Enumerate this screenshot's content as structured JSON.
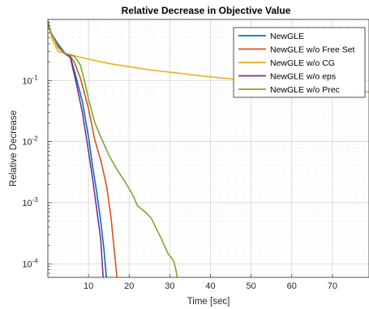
{
  "chart_data": {
    "type": "line",
    "title": "Relative Decrease in Objective Value",
    "xlabel": "Time [sec]",
    "ylabel": "Relative Decrease",
    "xlim": [
      0,
      79
    ],
    "ylim": [
      6e-05,
      1
    ],
    "y_scale": "log",
    "grid": true,
    "minor_grid": true,
    "legend_position": "top-right",
    "x_ticks": [
      10,
      20,
      30,
      40,
      50,
      60,
      70
    ],
    "x_tick_labels": [
      "10",
      "20",
      "30",
      "40",
      "50",
      "60",
      "70"
    ],
    "y_ticks": [
      {
        "value": 0.1,
        "base": "10",
        "exponent": "-1"
      },
      {
        "value": 0.01,
        "base": "10",
        "exponent": "-2"
      },
      {
        "value": 0.001,
        "base": "10",
        "exponent": "-3"
      },
      {
        "value": 0.0001,
        "base": "10",
        "exponent": "-4"
      }
    ],
    "series": [
      {
        "name": "NewGLE",
        "color": "#0072BD",
        "points": [
          [
            0,
            0.9
          ],
          [
            0.8,
            0.6
          ],
          [
            2.5,
            0.4
          ],
          [
            4,
            0.29
          ],
          [
            5.5,
            0.25
          ],
          [
            7,
            0.11
          ],
          [
            8.5,
            0.045
          ],
          [
            10,
            0.012
          ],
          [
            11,
            0.004
          ],
          [
            12,
            0.0015
          ],
          [
            13,
            0.0005
          ],
          [
            13.8,
            0.00017
          ],
          [
            14.4,
            6e-05
          ]
        ]
      },
      {
        "name": "NewGLE w/o Free Set",
        "color": "#D95319",
        "points": [
          [
            0,
            0.9
          ],
          [
            0.8,
            0.6
          ],
          [
            2.5,
            0.38
          ],
          [
            4,
            0.28
          ],
          [
            5.5,
            0.25
          ],
          [
            6.5,
            0.2
          ],
          [
            8,
            0.11
          ],
          [
            10,
            0.035
          ],
          [
            11.5,
            0.011
          ],
          [
            13,
            0.005
          ],
          [
            14.5,
            0.0018
          ],
          [
            15.5,
            0.0006
          ],
          [
            16.3,
            0.00018
          ],
          [
            17,
            6e-05
          ]
        ]
      },
      {
        "name": "NewGLE w/o CG",
        "color": "#EDB120",
        "points": [
          [
            0,
            0.85
          ],
          [
            1.2,
            0.45
          ],
          [
            2.5,
            0.3
          ],
          [
            5,
            0.27
          ],
          [
            8,
            0.24
          ],
          [
            15,
            0.19
          ],
          [
            25,
            0.15
          ],
          [
            40,
            0.115
          ],
          [
            60,
            0.085
          ],
          [
            79,
            0.065
          ]
        ]
      },
      {
        "name": "NewGLE w/o eps",
        "color": "#7E2F8E",
        "points": [
          [
            0,
            0.9
          ],
          [
            0.8,
            0.6
          ],
          [
            2.5,
            0.35
          ],
          [
            4,
            0.28
          ],
          [
            5.5,
            0.24
          ],
          [
            7,
            0.09
          ],
          [
            8.5,
            0.03
          ],
          [
            10,
            0.007
          ],
          [
            11,
            0.0025
          ],
          [
            12,
            0.0008
          ],
          [
            13,
            0.00025
          ],
          [
            13.6,
            6e-05
          ]
        ]
      },
      {
        "name": "NewGLE w/o Prec",
        "color": "#77AC30",
        "points": [
          [
            0,
            0.95
          ],
          [
            0.8,
            0.6
          ],
          [
            2.5,
            0.35
          ],
          [
            4,
            0.28
          ],
          [
            6.5,
            0.25
          ],
          [
            8,
            0.18
          ],
          [
            9,
            0.1
          ],
          [
            10,
            0.05
          ],
          [
            11.5,
            0.021
          ],
          [
            13,
            0.012
          ],
          [
            15,
            0.006
          ],
          [
            17,
            0.0035
          ],
          [
            19,
            0.0022
          ],
          [
            21,
            0.0013
          ],
          [
            22,
            0.0009
          ],
          [
            24,
            0.0007
          ],
          [
            25.5,
            0.00055
          ],
          [
            26.5,
            0.0004
          ],
          [
            28,
            0.00025
          ],
          [
            29.5,
            0.00015
          ],
          [
            31,
            0.00011
          ],
          [
            31.5,
            8e-05
          ],
          [
            31.8,
            6e-05
          ]
        ]
      }
    ]
  }
}
